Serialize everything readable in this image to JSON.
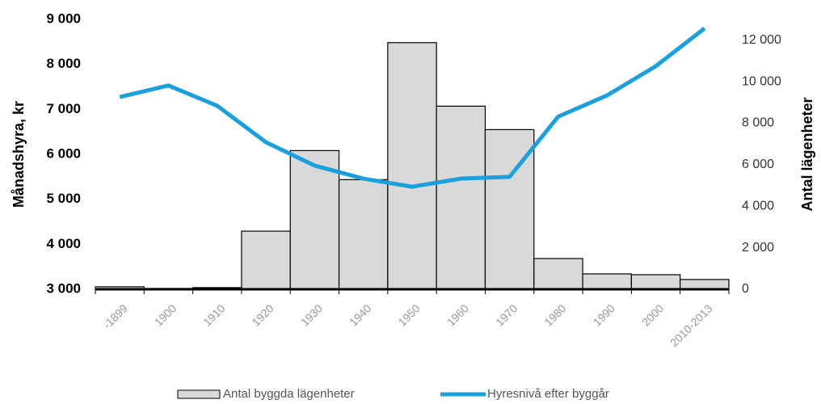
{
  "chart_data": {
    "type": "bar",
    "y_label": "Månadshyra, kr",
    "y2_label": "Antal lägenheter",
    "categories": [
      "-1899",
      "1900",
      "1910",
      "1920",
      "1930",
      "1940",
      "1950",
      "1960",
      "1970",
      "1980",
      "1990",
      "2000",
      "2010-2013"
    ],
    "series": [
      {
        "name": "Antal byggda lägenheter",
        "type": "bar",
        "axis": "y2",
        "color": "#d9d9d9",
        "values": [
          120,
          40,
          80,
          2800,
          6680,
          5280,
          11880,
          8820,
          7690,
          1480,
          740,
          700,
          470
        ]
      },
      {
        "name": "Hyresnivå efter byggår",
        "type": "line",
        "color": "#1aa0dc",
        "values": [
          7275,
          7530,
          7080,
          6270,
          5750,
          5460,
          5280,
          5460,
          5500,
          6840,
          7310,
          7960,
          8800
        ]
      }
    ],
    "ylim": [
      3000,
      9000
    ],
    "yticks": [
      {
        "value": 3000,
        "label": "3 000"
      },
      {
        "value": 4000,
        "label": "4 000"
      },
      {
        "value": 5000,
        "label": "5 000"
      },
      {
        "value": 6000,
        "label": "6 000"
      },
      {
        "value": 7000,
        "label": "7 000"
      },
      {
        "value": 8000,
        "label": "8 000"
      },
      {
        "value": 9000,
        "label": "9 000"
      }
    ],
    "y2lim": [
      0,
      13000
    ],
    "y2ticks": [
      0,
      {
        "value": 2000,
        "label": "2 000"
      },
      {
        "value": 4000,
        "label": "4 000"
      },
      {
        "value": 6000,
        "label": "6 000"
      },
      {
        "value": 8000,
        "label": "8 000"
      },
      {
        "value": 10000,
        "label": "10 000"
      },
      {
        "value": 12000,
        "label": "12 000"
      }
    ]
  }
}
